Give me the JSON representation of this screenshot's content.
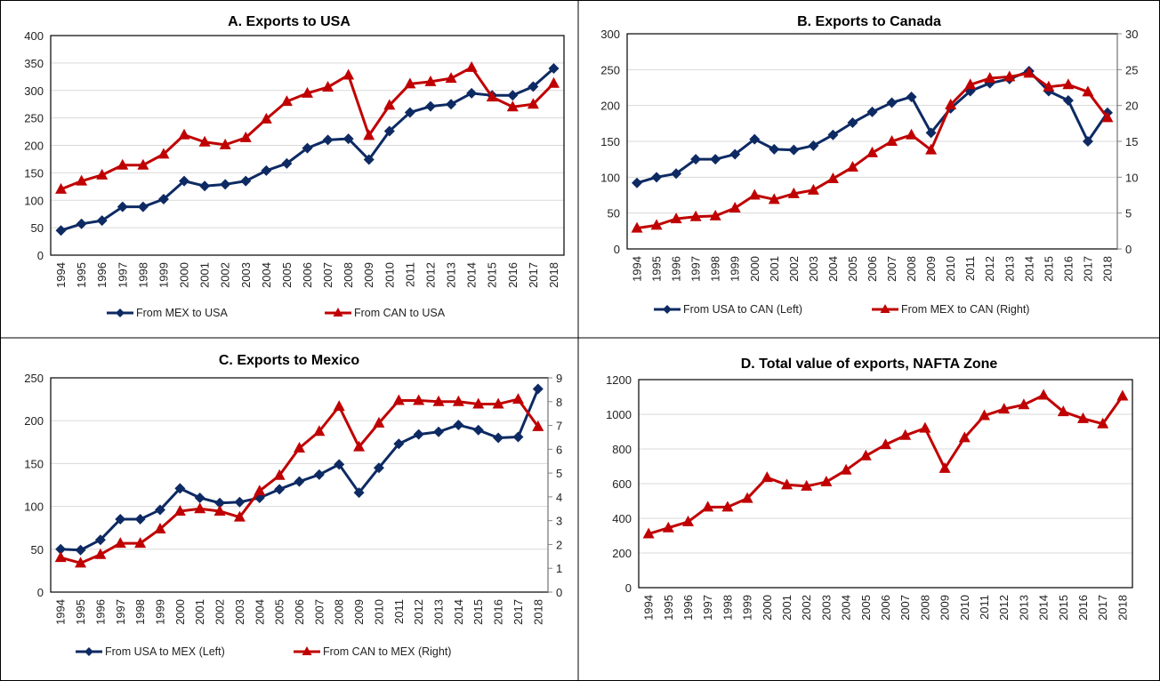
{
  "colors": {
    "navy": "#0d2a63",
    "red": "#c00000",
    "grid": "#d9d9d9"
  },
  "chart_data": [
    {
      "type": "line",
      "title": "A. Exports to USA",
      "categories": [
        "1994",
        "1995",
        "1996",
        "1997",
        "1998",
        "1999",
        "2000",
        "2001",
        "2002",
        "2003",
        "2004",
        "2005",
        "2006",
        "2007",
        "2008",
        "2009",
        "2010",
        "2011",
        "2012",
        "2013",
        "2014",
        "2015",
        "2016",
        "2017",
        "2018"
      ],
      "ylim": [
        0,
        400
      ],
      "yticks": [
        0,
        50,
        100,
        150,
        200,
        250,
        300,
        350,
        400
      ],
      "grid": true,
      "legend": "bottom",
      "series": [
        {
          "name": "From MEX to USA",
          "axis": "left",
          "color": "#0d2a63",
          "marker": "diamond",
          "values": [
            45,
            57,
            63,
            88,
            88,
            102,
            135,
            126,
            129,
            135,
            154,
            167,
            195,
            210,
            212,
            174,
            226,
            260,
            271,
            275,
            295,
            291,
            291,
            307,
            340
          ]
        },
        {
          "name": "From CAN to USA",
          "axis": "left",
          "color": "#c00000",
          "marker": "triangle",
          "values": [
            120,
            135,
            146,
            164,
            164,
            184,
            219,
            206,
            201,
            214,
            248,
            280,
            295,
            306,
            328,
            218,
            273,
            312,
            316,
            322,
            342,
            288,
            270,
            275,
            313
          ]
        }
      ]
    },
    {
      "type": "line",
      "title": "B. Exports to Canada",
      "categories": [
        "1994",
        "1995",
        "1996",
        "1997",
        "1998",
        "1999",
        "2000",
        "2001",
        "2002",
        "2003",
        "2004",
        "2005",
        "2006",
        "2007",
        "2008",
        "2009",
        "2010",
        "2011",
        "2012",
        "2013",
        "2014",
        "2015",
        "2016",
        "2017",
        "2018"
      ],
      "ylim": [
        0,
        300
      ],
      "yticks": [
        0,
        50,
        100,
        150,
        200,
        250,
        300
      ],
      "y2lim": [
        0,
        30
      ],
      "y2ticks": [
        0,
        5,
        10,
        15,
        20,
        25,
        30
      ],
      "grid": true,
      "legend": "bottom",
      "series": [
        {
          "name": "From  USA to CAN (Left)",
          "axis": "left",
          "color": "#0d2a63",
          "marker": "diamond",
          "values": [
            92,
            100,
            105,
            125,
            125,
            132,
            153,
            139,
            138,
            144,
            159,
            176,
            191,
            204,
            212,
            162,
            196,
            220,
            231,
            237,
            248,
            220,
            207,
            150,
            190
          ]
        },
        {
          "name": "From MEX to CAN (Right)",
          "axis": "right",
          "color": "#c00000",
          "marker": "triangle",
          "values": [
            2.9,
            3.3,
            4.2,
            4.5,
            4.6,
            5.7,
            7.5,
            6.9,
            7.7,
            8.2,
            9.8,
            11.4,
            13.4,
            15.0,
            15.9,
            13.8,
            20.1,
            22.9,
            23.8,
            24.0,
            24.5,
            22.6,
            22.9,
            21.9,
            18.3
          ]
        }
      ]
    },
    {
      "type": "line",
      "title": "C. Exports to Mexico",
      "categories": [
        "1994",
        "1995",
        "1996",
        "1997",
        "1998",
        "1999",
        "2000",
        "2001",
        "2002",
        "2003",
        "2004",
        "2005",
        "2006",
        "2007",
        "2008",
        "2009",
        "2010",
        "2011",
        "2012",
        "2013",
        "2014",
        "2015",
        "2016",
        "2017",
        "2018"
      ],
      "ylim": [
        0,
        250
      ],
      "yticks": [
        0,
        50,
        100,
        150,
        200,
        250
      ],
      "y2lim": [
        0,
        9
      ],
      "y2ticks": [
        0,
        1,
        2,
        3,
        4,
        5,
        6,
        7,
        8,
        9
      ],
      "grid": true,
      "legend": "bottom",
      "series": [
        {
          "name": "From  USA to MEX (Left)",
          "axis": "left",
          "color": "#0d2a63",
          "marker": "diamond",
          "values": [
            50,
            49,
            61,
            85,
            85,
            96,
            121,
            110,
            104,
            105,
            110,
            120,
            129,
            137,
            149,
            116,
            145,
            173,
            184,
            187,
            195,
            189,
            180,
            181,
            237
          ]
        },
        {
          "name": "From CAN to MEX (Right)",
          "axis": "right",
          "color": "#c00000",
          "marker": "triangle",
          "values": [
            1.45,
            1.22,
            1.58,
            2.05,
            2.05,
            2.65,
            3.4,
            3.5,
            3.4,
            3.15,
            4.25,
            4.9,
            6.05,
            6.75,
            7.8,
            6.1,
            7.1,
            8.05,
            8.05,
            8.0,
            8.0,
            7.9,
            7.9,
            8.1,
            6.95
          ]
        }
      ]
    },
    {
      "type": "line",
      "title": "D. Total value of exports, NAFTA Zone",
      "categories": [
        "1994",
        "1995",
        "1996",
        "1997",
        "1998",
        "1999",
        "2000",
        "2001",
        "2002",
        "2003",
        "2004",
        "2005",
        "2006",
        "2007",
        "2008",
        "2009",
        "2010",
        "2011",
        "2012",
        "2013",
        "2014",
        "2015",
        "2016",
        "2017",
        "2018"
      ],
      "ylim": [
        0,
        1200
      ],
      "yticks": [
        0,
        200,
        400,
        600,
        800,
        1000,
        1200
      ],
      "grid": true,
      "legend": "none",
      "series": [
        {
          "axis": "left",
          "color": "#c00000",
          "marker": "triangle",
          "values": [
            310,
            345,
            380,
            465,
            465,
            515,
            635,
            593,
            585,
            610,
            678,
            760,
            825,
            878,
            920,
            688,
            865,
            992,
            1030,
            1055,
            1110,
            1015,
            975,
            945,
            1105
          ]
        }
      ]
    }
  ]
}
